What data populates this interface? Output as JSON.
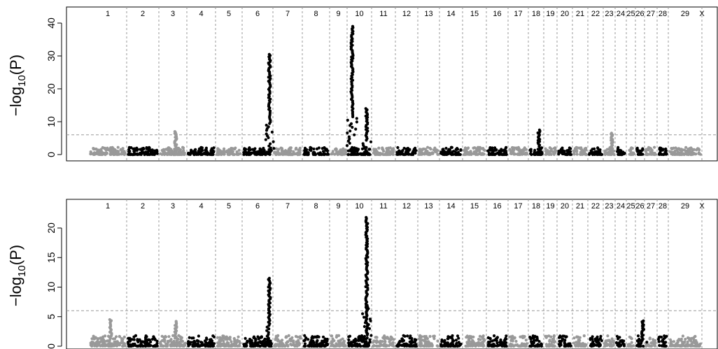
{
  "chart_data": [
    {
      "type": "scatter",
      "subtype": "manhattan",
      "title": "",
      "xlabel": "",
      "ylabel_main": "−log",
      "ylabel_sub": "10",
      "ylabel_tail": "(P)",
      "ylim": [
        0,
        42
      ],
      "yticks": [
        "0",
        "10",
        "20",
        "30",
        "40"
      ],
      "ytick_values": [
        0,
        10,
        20,
        30,
        40
      ],
      "threshold": 6,
      "chromosomes": [
        "1",
        "2",
        "3",
        "4",
        "5",
        "6",
        "7",
        "8",
        "9",
        "10",
        "11",
        "12",
        "13",
        "14",
        "15",
        "16",
        "17",
        "18",
        "19",
        "20",
        "21",
        "22",
        "23",
        "24",
        "25",
        "26",
        "27",
        "28",
        "29",
        "X"
      ],
      "chromosome_colors": [
        "#999999",
        "#000000"
      ],
      "peaks": [
        {
          "chromosome": "3",
          "value": 7.0
        },
        {
          "chromosome": "6",
          "value": 30.5
        },
        {
          "chromosome": "10",
          "value": 39.0
        },
        {
          "chromosome": "10",
          "value": 14.0
        },
        {
          "chromosome": "18",
          "value": 7.5
        },
        {
          "chromosome": "23",
          "value": 6.5
        }
      ]
    },
    {
      "type": "scatter",
      "subtype": "manhattan",
      "title": "",
      "xlabel": "",
      "ylabel_main": "−log",
      "ylabel_sub": "10",
      "ylabel_tail": "(P)",
      "ylim": [
        0,
        24
      ],
      "yticks": [
        "0",
        "5",
        "10",
        "15",
        "20"
      ],
      "ytick_values": [
        0,
        5,
        10,
        15,
        20
      ],
      "threshold": 6,
      "chromosomes": [
        "1",
        "2",
        "3",
        "4",
        "5",
        "6",
        "7",
        "8",
        "9",
        "10",
        "11",
        "12",
        "13",
        "14",
        "15",
        "16",
        "17",
        "18",
        "19",
        "20",
        "21",
        "22",
        "23",
        "24",
        "25",
        "26",
        "27",
        "28",
        "29",
        "X"
      ],
      "chromosome_colors": [
        "#999999",
        "#000000"
      ],
      "peaks": [
        {
          "chromosome": "1",
          "value": 4.5
        },
        {
          "chromosome": "3",
          "value": 4.2
        },
        {
          "chromosome": "6",
          "value": 11.5
        },
        {
          "chromosome": "10",
          "value": 21.8
        },
        {
          "chromosome": "10",
          "value": 7.0
        },
        {
          "chromosome": "26",
          "value": 4.3
        }
      ]
    }
  ]
}
